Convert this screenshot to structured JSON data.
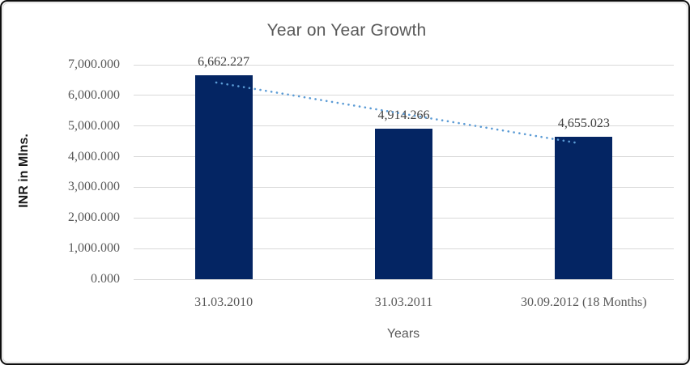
{
  "chart_data": {
    "type": "bar",
    "title": "Year on Year Growth",
    "xlabel": "Years",
    "ylabel": "INR in Mlns.",
    "categories": [
      "31.03.2010",
      "31.03.2011",
      "30.09.2012 (18 Months)"
    ],
    "values": [
      6662.227,
      4914.266,
      4655.023
    ],
    "data_labels": [
      "6,662.227",
      "4,914.266",
      "4,655.023"
    ],
    "ylim": [
      0,
      7000
    ],
    "ytick_step": 1000,
    "ytick_labels": [
      "7,000.000",
      "6,000.000",
      "5,000.000",
      "4,000.000",
      "3,000.000",
      "2,000.000",
      "1,000.000",
      "0.000"
    ],
    "grid": true,
    "legend": "none",
    "trendline": {
      "style": "dotted",
      "x1_frac": 0.153,
      "y1_value": 6420,
      "x2_frac": 0.825,
      "y2_value": 4437
    },
    "colors": {
      "bar": "#042563",
      "trendline": "#5b9bd5",
      "title": "#595959",
      "tick_label": "#595959",
      "data_label": "#404040",
      "gridline": "#d9d9d9",
      "axis_title": "#1a1a1a"
    }
  }
}
